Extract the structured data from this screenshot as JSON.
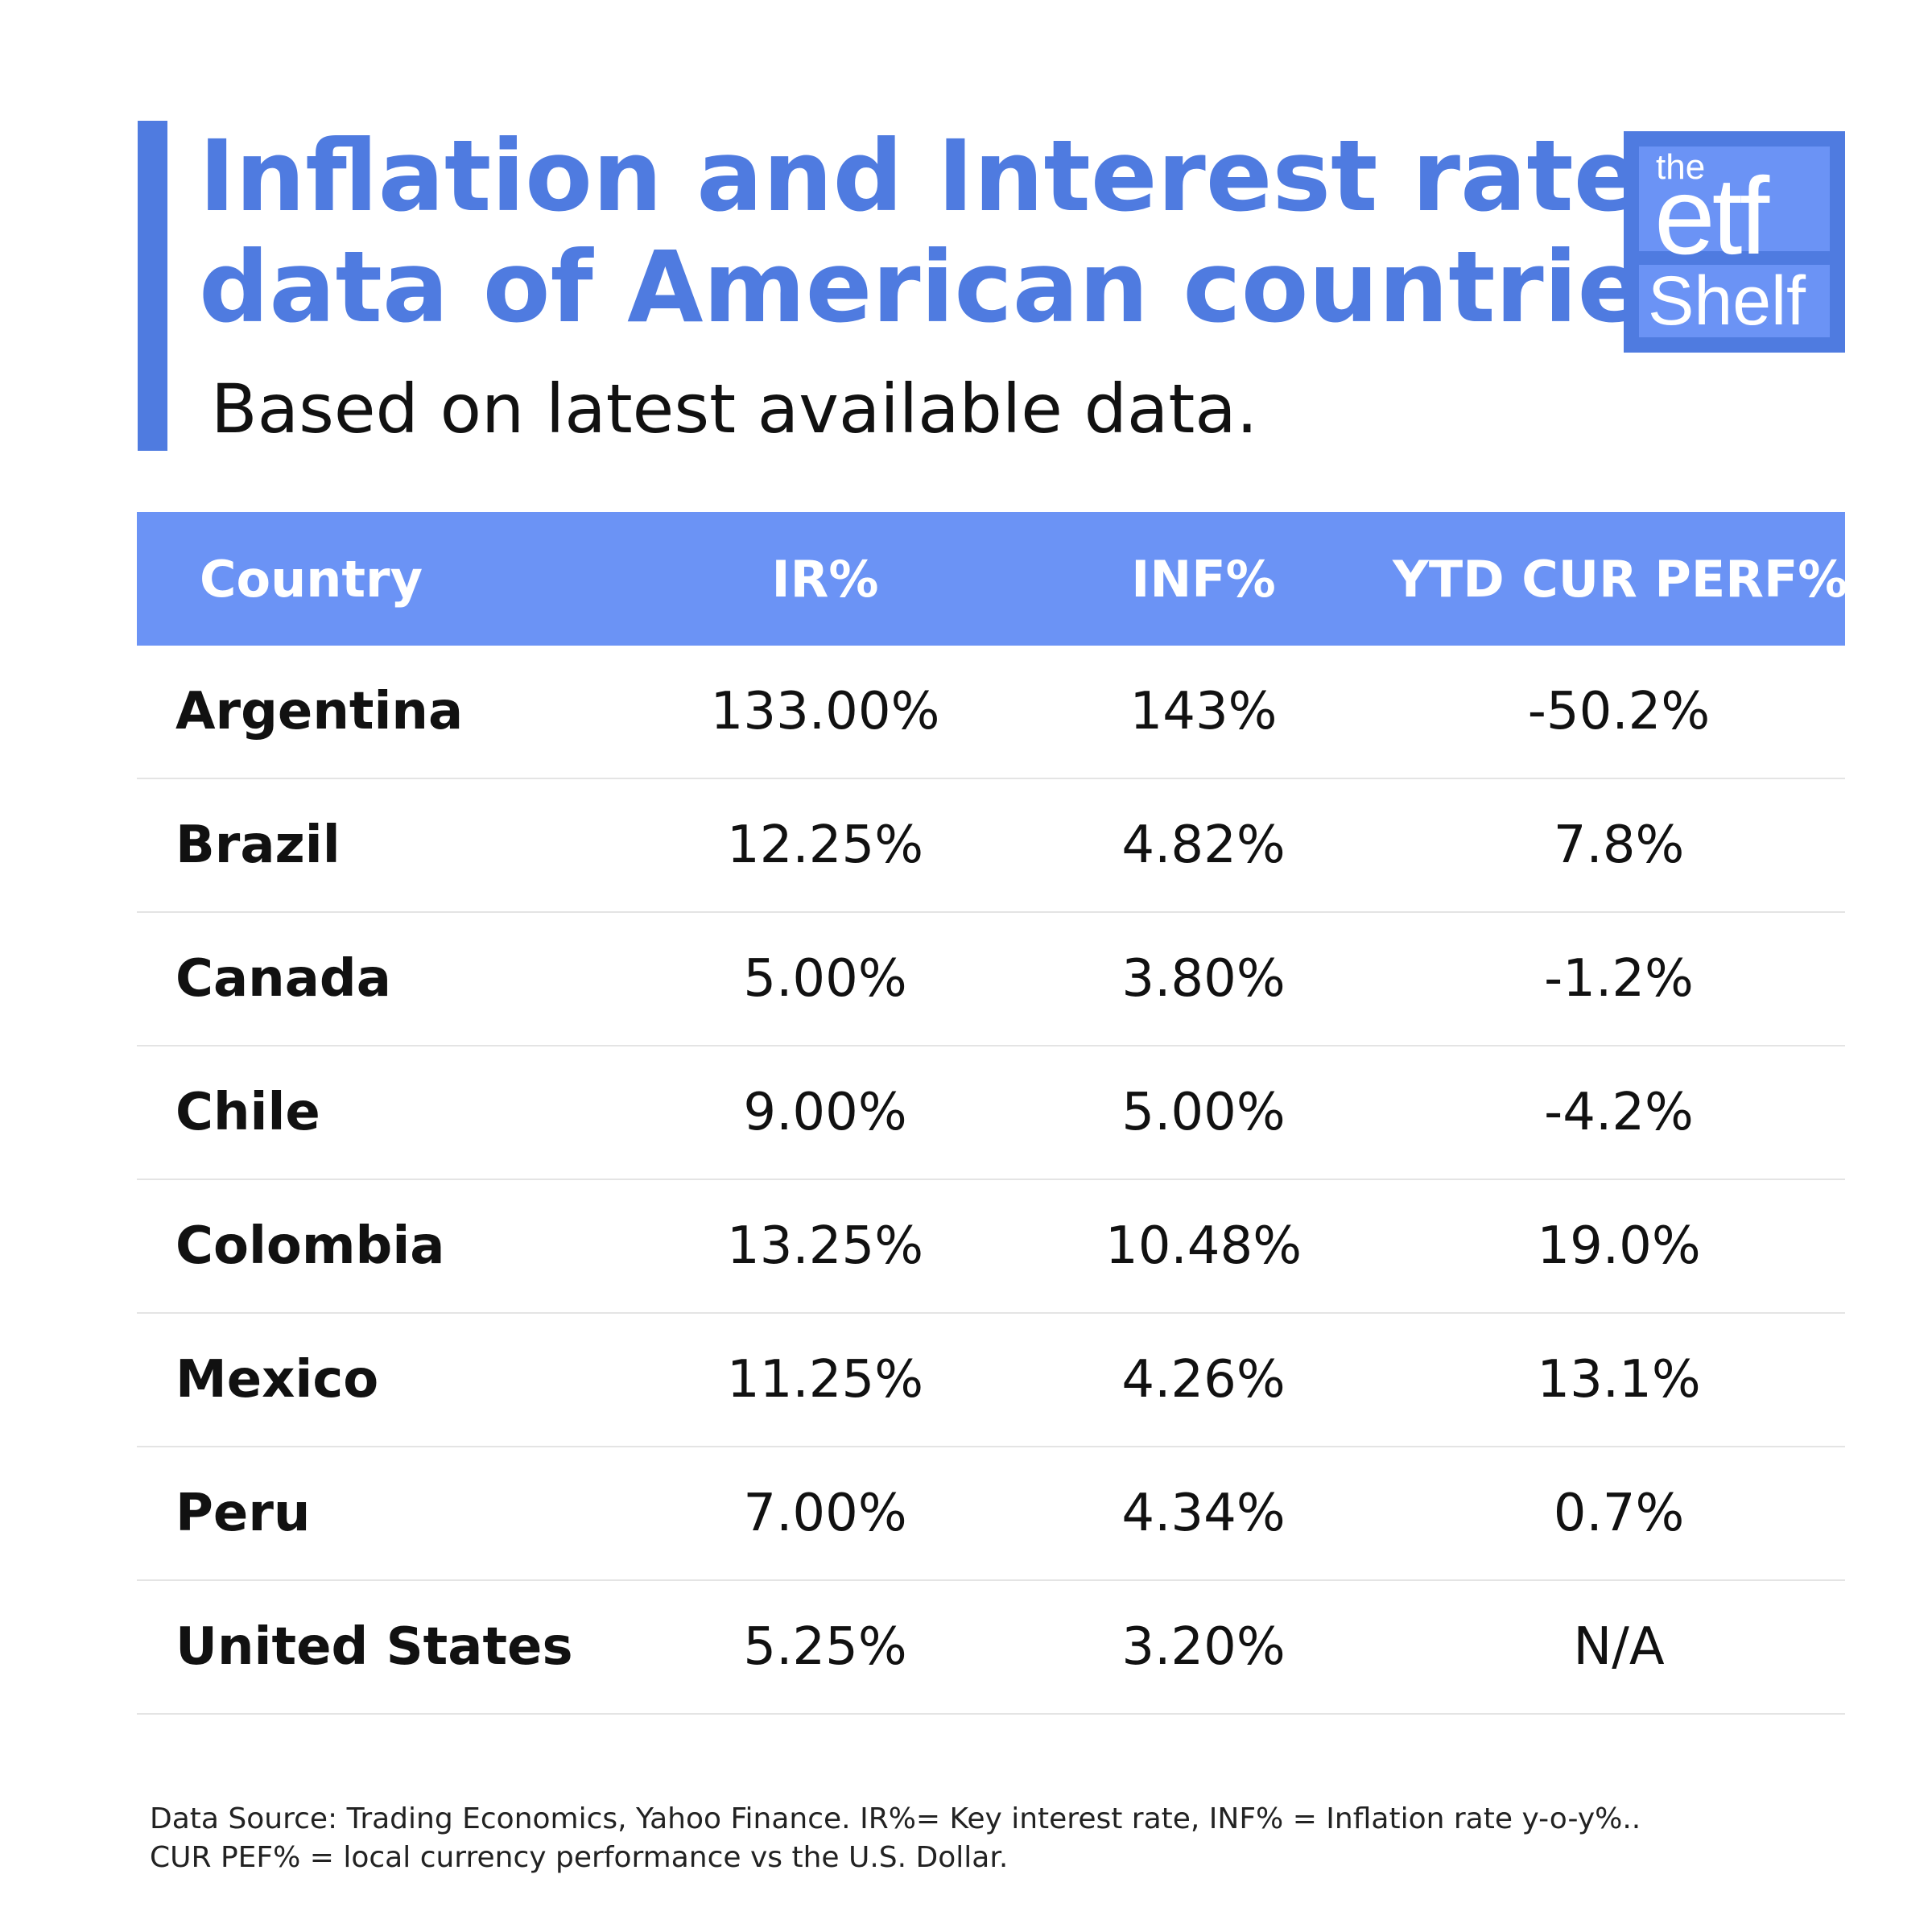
{
  "header": {
    "title_line1": "Inflation and Interest rate",
    "title_line2": "data of American countries",
    "subtitle": "Based on latest available data.",
    "accent_color": "#4f7be0"
  },
  "logo": {
    "line1": "the",
    "line2": "etf",
    "line3": "Shelf",
    "color": "#4f7be0"
  },
  "chart_data": {
    "type": "table",
    "columns": [
      "Country",
      "IR%",
      "INF%",
      "YTD CUR PERF%"
    ],
    "rows": [
      [
        "Argentina",
        "133.00%",
        "143%",
        "-50.2%"
      ],
      [
        "Brazil",
        "12.25%",
        "4.82%",
        "7.8%"
      ],
      [
        "Canada",
        "5.00%",
        "3.80%",
        "-1.2%"
      ],
      [
        "Chile",
        "9.00%",
        "5.00%",
        "-4.2%"
      ],
      [
        "Colombia",
        "13.25%",
        "10.48%",
        "19.0%"
      ],
      [
        "Mexico",
        "11.25%",
        "4.26%",
        "13.1%"
      ],
      [
        "Peru",
        "7.00%",
        "4.34%",
        "0.7%"
      ],
      [
        "United States",
        "5.25%",
        "3.20%",
        "N/A"
      ]
    ],
    "header_color": "#6b93f5"
  },
  "footnote": {
    "line1": "Data Source: Trading Economics, Yahoo Finance. IR%= Key interest rate, INF% = Inflation rate y-o-y%..",
    "line2": "CUR PEF% = local currency performance vs the U.S. Dollar."
  }
}
